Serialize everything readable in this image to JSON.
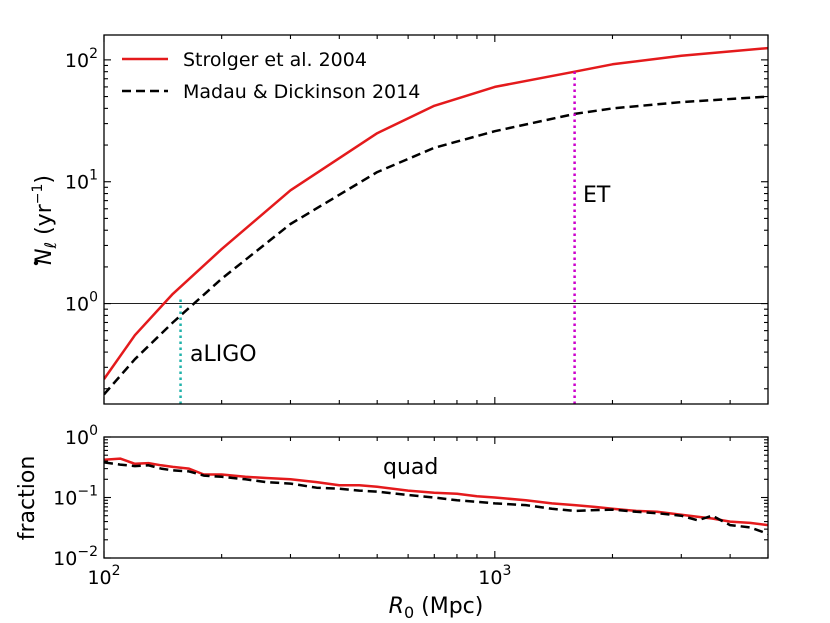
{
  "chart_data": [
    {
      "type": "line",
      "panel": "top",
      "xlabel_var": "R",
      "xlabel_sub": "0",
      "xlabel_unit": " (Mpc)",
      "ylabel_var": "N",
      "ylabel_sub": "ℓ",
      "ylabel_unit_open": " (yr",
      "ylabel_unit_exp": "−1",
      "ylabel_unit_close": ")",
      "xscale": "log",
      "yscale": "log",
      "xlim": [
        100,
        5000
      ],
      "ylim": [
        0.15,
        160
      ],
      "yticks": [
        {
          "value": 1,
          "base": "10",
          "exp": "0"
        },
        {
          "value": 10,
          "base": "10",
          "exp": "1"
        },
        {
          "value": 100,
          "base": "10",
          "exp": "2"
        }
      ],
      "hline": 1.0,
      "series": [
        {
          "name": "Strolger et al. 2004",
          "color": "#e41a1c",
          "style": "solid",
          "x": [
            100,
            120,
            150,
            200,
            300,
            500,
            700,
            1000,
            1600,
            2000,
            3000,
            5000
          ],
          "y": [
            0.24,
            0.55,
            1.2,
            2.8,
            8.5,
            25,
            42,
            60,
            80,
            92,
            108,
            125
          ]
        },
        {
          "name": "Madau & Dickinson 2014",
          "color": "#000000",
          "style": "dashed",
          "x": [
            100,
            120,
            150,
            200,
            300,
            500,
            700,
            1000,
            1600,
            2000,
            3000,
            5000
          ],
          "y": [
            0.18,
            0.35,
            0.7,
            1.6,
            4.5,
            12,
            19,
            26,
            36,
            40,
            45,
            50
          ]
        }
      ],
      "vlines": [
        {
          "name": "aLIGO",
          "x": 157,
          "y_top": 1.1,
          "color": "#20b2aa"
        },
        {
          "name": "ET",
          "x": 1600,
          "y_top": 80,
          "color": "#cc00cc"
        }
      ],
      "annotations": [
        {
          "text": "aLIGO",
          "x": 165,
          "y": 0.4
        },
        {
          "text": "ET",
          "x": 1700,
          "y": 6.5
        }
      ],
      "legend": "top-left"
    },
    {
      "type": "line",
      "panel": "bottom",
      "ylabel": "fraction",
      "xscale": "log",
      "yscale": "log",
      "xlim": [
        100,
        5000
      ],
      "ylim": [
        0.01,
        1
      ],
      "xticks": [
        {
          "value": 100,
          "base": "10",
          "exp": "2"
        },
        {
          "value": 1000,
          "base": "10",
          "exp": "3"
        }
      ],
      "yticks": [
        {
          "value": 0.01,
          "base": "10",
          "exp": "−2"
        },
        {
          "value": 0.1,
          "base": "10",
          "exp": "−1"
        },
        {
          "value": 1,
          "base": "10",
          "exp": "0"
        }
      ],
      "series": [
        {
          "name": "Strolger et al. 2004",
          "color": "#e41a1c",
          "style": "solid",
          "x": [
            100,
            110,
            120,
            130,
            140,
            150,
            165,
            180,
            200,
            230,
            260,
            300,
            350,
            400,
            450,
            500,
            600,
            700,
            800,
            900,
            1000,
            1200,
            1400,
            1600,
            1800,
            2000,
            2300,
            2600,
            3000,
            3300,
            3600,
            4000,
            4500,
            5000
          ],
          "y": [
            0.42,
            0.44,
            0.36,
            0.37,
            0.34,
            0.32,
            0.3,
            0.24,
            0.24,
            0.22,
            0.21,
            0.2,
            0.18,
            0.16,
            0.16,
            0.15,
            0.13,
            0.12,
            0.115,
            0.105,
            0.1,
            0.09,
            0.08,
            0.075,
            0.07,
            0.065,
            0.06,
            0.058,
            0.052,
            0.048,
            0.045,
            0.04,
            0.038,
            0.035
          ]
        },
        {
          "name": "Madau & Dickinson 2014",
          "color": "#000000",
          "style": "dashed",
          "x": [
            100,
            110,
            120,
            130,
            140,
            150,
            165,
            180,
            200,
            230,
            260,
            300,
            350,
            400,
            450,
            500,
            600,
            700,
            800,
            900,
            1000,
            1200,
            1400,
            1600,
            1800,
            2000,
            2300,
            2600,
            3000,
            3300,
            3600,
            4000,
            4500,
            5000
          ],
          "y": [
            0.38,
            0.35,
            0.33,
            0.34,
            0.3,
            0.28,
            0.27,
            0.23,
            0.22,
            0.2,
            0.18,
            0.17,
            0.145,
            0.14,
            0.13,
            0.125,
            0.11,
            0.1,
            0.09,
            0.085,
            0.08,
            0.075,
            0.065,
            0.06,
            0.062,
            0.063,
            0.058,
            0.055,
            0.05,
            0.042,
            0.05,
            0.035,
            0.032,
            0.025
          ]
        }
      ],
      "annotations": [
        {
          "text": "quad",
          "x": 550,
          "y": 0.3
        }
      ]
    }
  ]
}
